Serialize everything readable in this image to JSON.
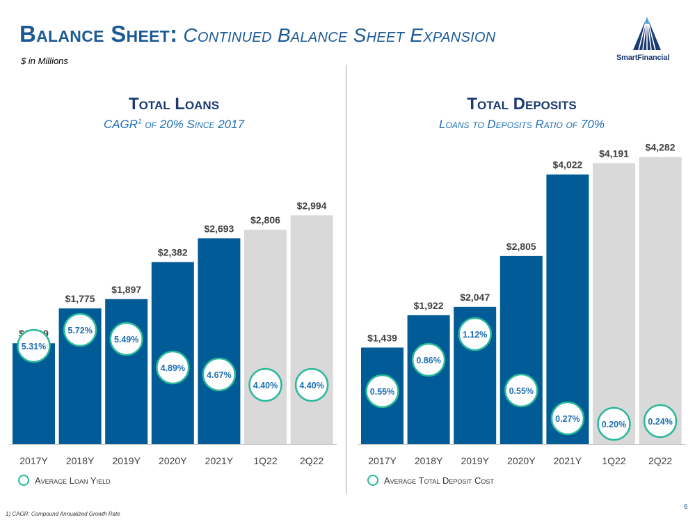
{
  "header": {
    "title_main": "Balance Sheet:",
    "title_sub": "Continued Balance Sheet Expansion",
    "subtitle": "$ in Millions",
    "logo_text": "SmartFinancial"
  },
  "colors": {
    "dark_bar": "#005b96",
    "light_bar": "#d9d9d9",
    "circle_border": "#29b89a",
    "circle_text": "#1d6fb5",
    "title": "#1b3a70"
  },
  "left_panel": {
    "title": "Total Loans",
    "subtitle_pre": "CAGR",
    "subtitle_sup": "1",
    "subtitle_post": " of 20% Since 2017",
    "legend": "Average Loan Yield"
  },
  "right_panel": {
    "title": "Total Deposits",
    "subtitle": "Loans to Deposits Ratio of 70%",
    "legend": "Average Total Deposit Cost"
  },
  "chart_data": [
    {
      "type": "bar",
      "title": "Total Loans",
      "categories": [
        "2017Y",
        "2018Y",
        "2019Y",
        "2020Y",
        "2021Y",
        "1Q22",
        "2Q22"
      ],
      "values": [
        1319,
        1775,
        1897,
        2382,
        2693,
        2806,
        2994
      ],
      "value_labels": [
        "$1,319",
        "$1,775",
        "$1,897",
        "$2,382",
        "$2,693",
        "$2,806",
        "$2,994"
      ],
      "bar_styles": [
        "dark",
        "dark",
        "dark",
        "dark",
        "dark",
        "light",
        "light"
      ],
      "rates": [
        5.31,
        5.72,
        5.49,
        4.89,
        4.67,
        4.4,
        4.4
      ],
      "rate_labels": [
        "5.31%",
        "5.72%",
        "5.49%",
        "4.89%",
        "4.67%",
        "4.40%",
        "4.40%"
      ],
      "ylim": [
        0,
        3500
      ]
    },
    {
      "type": "bar",
      "title": "Total Deposits",
      "categories": [
        "2017Y",
        "2018Y",
        "2019Y",
        "2020Y",
        "2021Y",
        "1Q22",
        "2Q22"
      ],
      "values": [
        1439,
        1922,
        2047,
        2805,
        4022,
        4191,
        4282
      ],
      "value_labels": [
        "$1,439",
        "$1,922",
        "$2,047",
        "$2,805",
        "$4,022",
        "$4,191",
        "$4,282"
      ],
      "bar_styles": [
        "dark",
        "dark",
        "dark",
        "dark",
        "dark",
        "light",
        "light"
      ],
      "rates": [
        0.55,
        0.86,
        1.12,
        0.55,
        0.27,
        0.2,
        0.24
      ],
      "rate_labels": [
        "0.55%",
        "0.86%",
        "1.12%",
        "0.55%",
        "0.27%",
        "0.20%",
        "0.24%"
      ],
      "ylim": [
        0,
        4600
      ]
    }
  ],
  "footer": {
    "footnote": "1) CAGR: Compound Annualized Growth Rate",
    "page_number": "6"
  }
}
